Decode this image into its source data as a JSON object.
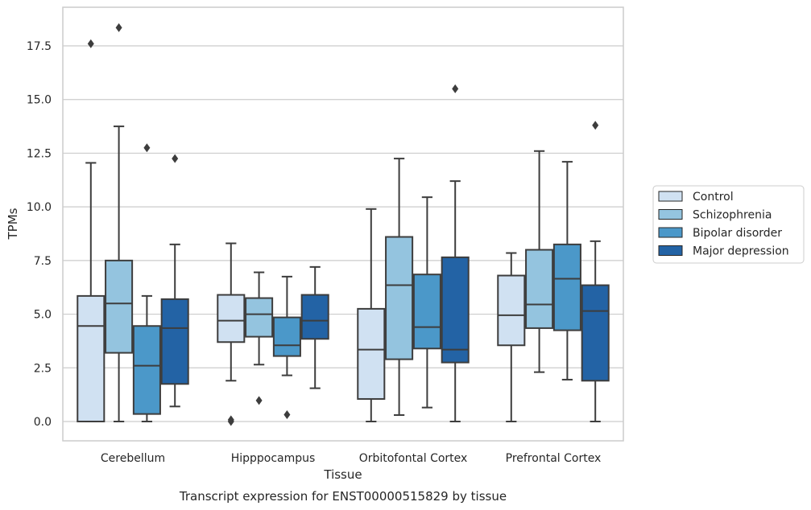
{
  "chart_data": {
    "type": "box",
    "xlabel": "Tissue",
    "ylabel": "TPMs",
    "caption": "Transcript expression for ENST00000515829 by tissue",
    "ylim": [
      -0.9,
      19.3
    ],
    "yticks": [
      0.0,
      2.5,
      5.0,
      7.5,
      10.0,
      12.5,
      15.0,
      17.5
    ],
    "ytick_labels": [
      "0.0",
      "2.5",
      "5.0",
      "7.5",
      "10.0",
      "12.5",
      "15.0",
      "17.5"
    ],
    "grid": "horizontal",
    "legend_position": "right",
    "categories": [
      "Cerebellum",
      "Hipppocampus",
      "Orbitofontal Cortex",
      "Prefrontal Cortex"
    ],
    "series": [
      {
        "name": "Control",
        "color": "#d0e1f2",
        "boxes": [
          {
            "whislo": 0.0,
            "q1": 0.0,
            "med": 4.45,
            "q3": 5.85,
            "whishi": 12.05,
            "fliers": [
              17.6
            ]
          },
          {
            "whislo": 1.9,
            "q1": 3.7,
            "med": 4.7,
            "q3": 5.9,
            "whishi": 8.3,
            "fliers": [
              0.0,
              0.08
            ]
          },
          {
            "whislo": 0.0,
            "q1": 1.05,
            "med": 3.35,
            "q3": 5.25,
            "whishi": 9.9,
            "fliers": []
          },
          {
            "whislo": 0.0,
            "q1": 3.55,
            "med": 4.95,
            "q3": 6.8,
            "whishi": 7.85,
            "fliers": []
          }
        ]
      },
      {
        "name": "Schizophrenia",
        "color": "#94c4df",
        "boxes": [
          {
            "whislo": 0.0,
            "q1": 3.2,
            "med": 5.5,
            "q3": 7.5,
            "whishi": 13.75,
            "fliers": [
              18.35
            ]
          },
          {
            "whislo": 2.65,
            "q1": 3.95,
            "med": 5.0,
            "q3": 5.75,
            "whishi": 6.95,
            "fliers": [
              0.98
            ]
          },
          {
            "whislo": 0.3,
            "q1": 2.9,
            "med": 6.35,
            "q3": 8.6,
            "whishi": 12.25,
            "fliers": []
          },
          {
            "whislo": 2.3,
            "q1": 4.35,
            "med": 5.45,
            "q3": 8.0,
            "whishi": 12.6,
            "fliers": []
          }
        ]
      },
      {
        "name": "Bipolar disorder",
        "color": "#4b98c9",
        "boxes": [
          {
            "whislo": 0.0,
            "q1": 0.35,
            "med": 2.6,
            "q3": 4.45,
            "whishi": 5.85,
            "fliers": [
              12.75
            ]
          },
          {
            "whislo": 2.15,
            "q1": 3.05,
            "med": 3.55,
            "q3": 4.85,
            "whishi": 6.75,
            "fliers": [
              0.32
            ]
          },
          {
            "whislo": 0.65,
            "q1": 3.4,
            "med": 4.4,
            "q3": 6.85,
            "whishi": 10.45,
            "fliers": []
          },
          {
            "whislo": 1.95,
            "q1": 4.25,
            "med": 6.65,
            "q3": 8.25,
            "whishi": 12.1,
            "fliers": []
          }
        ]
      },
      {
        "name": "Major depression",
        "color": "#2363a5",
        "boxes": [
          {
            "whislo": 0.7,
            "q1": 1.75,
            "med": 4.35,
            "q3": 5.7,
            "whishi": 8.25,
            "fliers": [
              12.25
            ]
          },
          {
            "whislo": 1.55,
            "q1": 3.85,
            "med": 4.7,
            "q3": 5.9,
            "whishi": 7.2,
            "fliers": []
          },
          {
            "whislo": 0.0,
            "q1": 2.75,
            "med": 3.35,
            "q3": 7.65,
            "whishi": 11.2,
            "fliers": [
              15.5
            ]
          },
          {
            "whislo": 0.0,
            "q1": 1.9,
            "med": 5.15,
            "q3": 6.35,
            "whishi": 8.4,
            "fliers": [
              13.8
            ]
          }
        ]
      }
    ]
  }
}
